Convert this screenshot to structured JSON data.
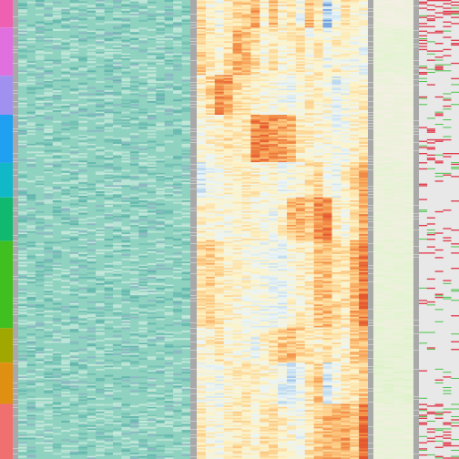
{
  "chart_data": [
    {
      "type": "heatmap",
      "panel": "cluster-annotation",
      "colors": [
        "#f060b0",
        "#e070e0",
        "#a090f0",
        "#20a0f0",
        "#10b8c8",
        "#10b870",
        "#40c020",
        "#a0a800",
        "#e09010",
        "#f07070"
      ],
      "group_breaks": [
        0,
        0.06,
        0.165,
        0.25,
        0.355,
        0.43,
        0.525,
        0.715,
        0.79,
        0.88,
        1.0
      ]
    },
    {
      "type": "heatmap",
      "panel": "teal-expression-block",
      "base_color": "#8fd2c0",
      "columns": 20,
      "rows": 300
    },
    {
      "type": "heatmap",
      "panel": "diverging-expression-block",
      "palette": [
        "#5b8fd6",
        "#b7d6ee",
        "#eaf4f7",
        "#fdf3c6",
        "#fdd08a",
        "#f59a4e",
        "#e4572e"
      ],
      "columns": 19,
      "rows": 300,
      "block_means": [
        [
          0.35,
          0.1,
          0.0,
          0.2,
          0.35,
          0.45,
          0.65,
          0.15,
          0.55,
          0.2,
          0.3,
          0.0,
          0.55,
          0.3,
          -0.35,
          0.0,
          0.35,
          0.2,
          0.1
        ],
        [
          0.45,
          0.25,
          0.15,
          0.35,
          0.6,
          0.5,
          0.35,
          0.1,
          0.3,
          0.15,
          0.2,
          0.3,
          0.1,
          0.25,
          0.0,
          0.2,
          0.1,
          0.05,
          0.0
        ],
        [
          0.2,
          0.4,
          0.75,
          0.7,
          0.35,
          0.3,
          0.2,
          0.15,
          0.1,
          0.05,
          0.0,
          0.1,
          0.25,
          0.2,
          0.1,
          -0.1,
          0.0,
          0.15,
          0.2
        ],
        [
          0.1,
          0.15,
          0.2,
          0.3,
          0.25,
          0.3,
          0.75,
          0.8,
          0.7,
          0.65,
          0.6,
          0.25,
          0.2,
          0.15,
          0.1,
          0.0,
          0.05,
          0.2,
          0.3
        ],
        [
          -0.15,
          0.0,
          0.1,
          0.15,
          0.2,
          0.25,
          0.2,
          0.1,
          0.15,
          0.0,
          0.05,
          0.15,
          0.3,
          0.4,
          0.1,
          0.0,
          0.2,
          0.45,
          0.6
        ],
        [
          0.2,
          0.15,
          0.1,
          0.05,
          0.1,
          0.2,
          0.15,
          0.1,
          0.0,
          0.2,
          0.55,
          0.6,
          0.5,
          0.75,
          0.85,
          0.2,
          0.1,
          0.3,
          0.65
        ],
        [
          0.35,
          0.45,
          0.3,
          0.2,
          0.15,
          0.1,
          0.05,
          0.0,
          0.0,
          -0.05,
          0.1,
          0.2,
          0.25,
          0.5,
          0.55,
          0.35,
          0.3,
          0.6,
          0.85
        ],
        [
          0.15,
          0.2,
          0.3,
          0.15,
          0.1,
          0.05,
          0.0,
          0.15,
          0.35,
          0.45,
          0.55,
          0.4,
          0.3,
          0.2,
          0.35,
          0.25,
          0.15,
          0.45,
          0.55
        ],
        [
          0.1,
          0.05,
          0.0,
          0.15,
          0.25,
          0.3,
          0.2,
          0.15,
          0.1,
          -0.1,
          -0.2,
          0.0,
          0.3,
          0.5,
          -0.2,
          0.1,
          0.25,
          0.35,
          0.5
        ],
        [
          0.3,
          0.1,
          0.05,
          0.2,
          0.3,
          0.25,
          0.15,
          0.3,
          0.35,
          0.2,
          0.1,
          0.0,
          0.3,
          0.45,
          0.55,
          0.6,
          0.65,
          0.45,
          0.9
        ]
      ]
    },
    {
      "type": "heatmap",
      "panel": "green-score-block",
      "palette": [
        "#f4efe4",
        "#e4f3d2",
        "#cdeab2"
      ],
      "columns": 4,
      "rows": 300,
      "block_means": [
        0.1,
        0.35,
        0.15,
        0.2,
        0.3,
        0.25,
        0.35,
        0.4,
        0.45,
        0.3
      ]
    },
    {
      "type": "heatmap",
      "panel": "binary-marker-block",
      "background": "#e8e8e8",
      "palette": [
        "#e03c4e",
        "#4cc44c"
      ],
      "columns": 5,
      "rows": 300
    }
  ]
}
